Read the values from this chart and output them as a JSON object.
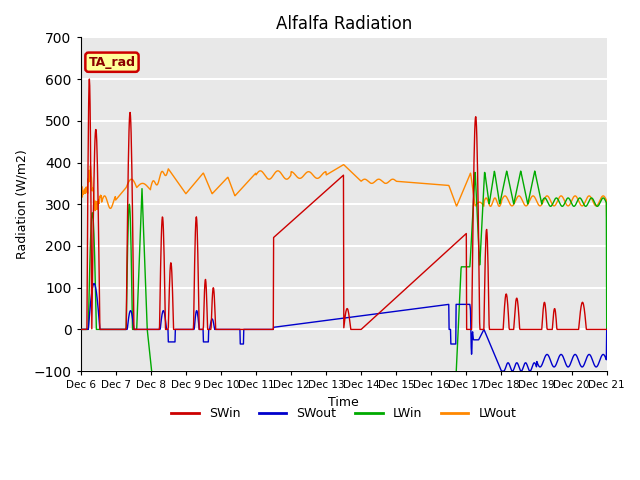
{
  "title": "Alfalfa Radiation",
  "ylabel": "Radiation (W/m2)",
  "xlabel": "Time",
  "ylim": [
    -100,
    700
  ],
  "annotation_text": "TA_rad",
  "annotation_bg": "#FFFF99",
  "annotation_border": "#CC0000",
  "bg_color": "#E8E8E8",
  "grid_color": "white",
  "series": {
    "SWin": {
      "color": "#CC0000",
      "lw": 1.0
    },
    "SWout": {
      "color": "#0000CC",
      "lw": 1.0
    },
    "LWin": {
      "color": "#00AA00",
      "lw": 1.0
    },
    "LWout": {
      "color": "#FF8800",
      "lw": 1.0
    }
  },
  "xtick_labels": [
    "Dec 6",
    "Dec 7",
    "Dec 8",
    "Dec 9",
    "Dec 10",
    "Dec 11",
    "Dec 12",
    "Dec 13",
    "Dec 14",
    "Dec 15",
    "Dec 16",
    "Dec 17",
    "Dec 18",
    "Dec 19",
    "Dec 20",
    "Dec 21"
  ],
  "ytick_values": [
    -100,
    0,
    100,
    200,
    300,
    400,
    500,
    600,
    700
  ],
  "legend_labels": [
    "SWin",
    "SWout",
    "LWin",
    "LWout"
  ]
}
